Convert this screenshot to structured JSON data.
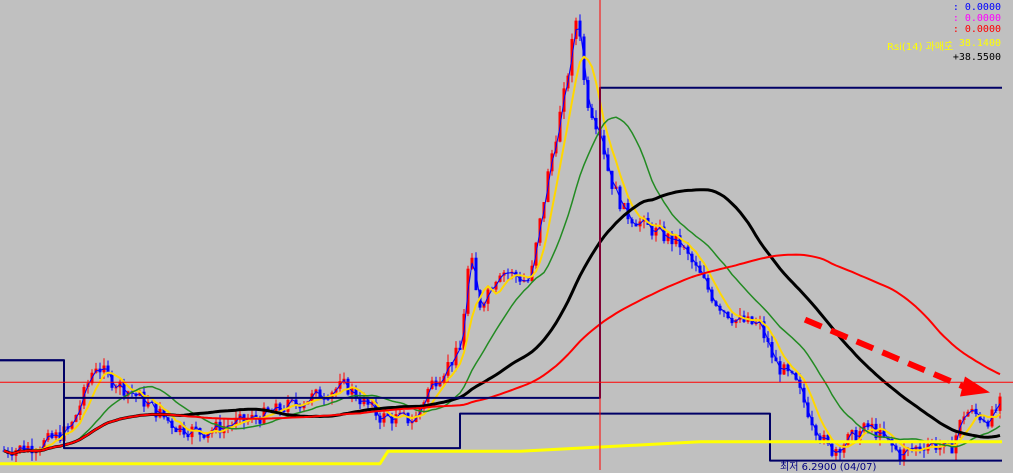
{
  "chart_data": {
    "type": "candlestick",
    "y_range": [
      6.0,
      21.0
    ],
    "readouts": [
      {
        "text": ": 0.0000",
        "color": "#0000ff"
      },
      {
        "text": ": 0.0000",
        "color": "#ff00ff"
      },
      {
        "text": ": 0.0000",
        "color": "#ff0000"
      },
      {
        "text": ": 38.1400",
        "color": "#ffff00"
      },
      {
        "text": "+38.5500",
        "color": "#000000"
      }
    ],
    "rsi_label": {
      "text": "Rsi(14) 과매도",
      "color": "#ffff00"
    },
    "low_label": {
      "text": "최저 6.2900 (04/07)",
      "color": "#000080"
    },
    "candles": [],
    "colors": {
      "up": "#ff0000",
      "down": "#0000ff",
      "ma5": "#0000ff",
      "ma20": "#ffd700",
      "ma60": "#228b22",
      "ma120": "#000000",
      "ma240": "#ff0000",
      "envelope": "#000066",
      "rsi_line": "#ffff00",
      "background": "#c0c0c0"
    }
  }
}
